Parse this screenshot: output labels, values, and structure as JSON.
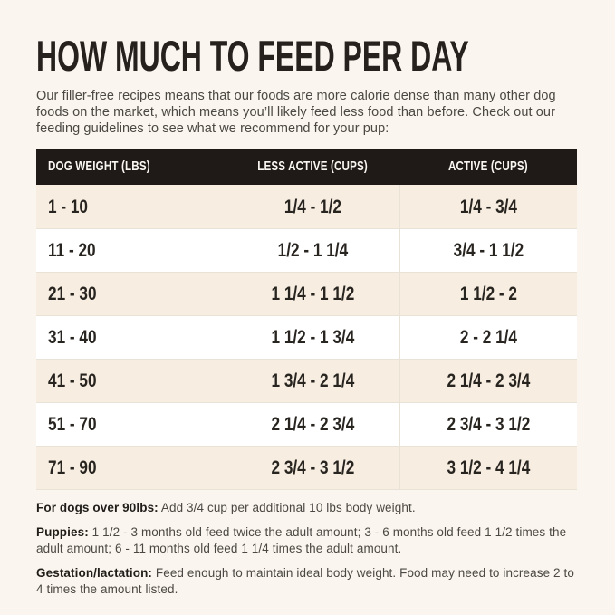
{
  "page": {
    "title": "HOW MUCH TO FEED PER DAY",
    "intro": "Our filler-free recipes means that our foods are more calorie dense than many other dog foods on the market, which means you’ll likely feed less food than before. Check out our feeding guidelines to see what we recommend for your pup:"
  },
  "table": {
    "columns": [
      "DOG WEIGHT (LBS)",
      "LESS ACTIVE (CUPS)",
      "ACTIVE (CUPS)"
    ],
    "rows": [
      {
        "weight": "1 - 10",
        "less_active": "1/4 - 1/2",
        "active": "1/4 - 3/4"
      },
      {
        "weight": "11 - 20",
        "less_active": "1/2 - 1 1/4",
        "active": "3/4 - 1 1/2"
      },
      {
        "weight": "21 - 30",
        "less_active": "1 1/4 - 1 1/2",
        "active": "1 1/2 - 2"
      },
      {
        "weight": "31 - 40",
        "less_active": "1 1/2 - 1 3/4",
        "active": "2 - 2 1/4"
      },
      {
        "weight": "41 - 50",
        "less_active": "1 3/4 - 2 1/4",
        "active": "2 1/4 - 2 3/4"
      },
      {
        "weight": "51 - 70",
        "less_active": "2 1/4 - 2 3/4",
        "active": "2 3/4 - 3 1/2"
      },
      {
        "weight": "71 - 90",
        "less_active": "2 3/4 - 3 1/2",
        "active": "3 1/2 - 4 1/4"
      }
    ]
  },
  "notes": [
    {
      "label": "For dogs over 90lbs:",
      "text": "Add 3/4 cup per additional 10 lbs body weight."
    },
    {
      "label": "Puppies:",
      "text": "1 1/2 - 3 months old feed twice the adult amount; 3 - 6 months old feed 1 1/2 times the adult amount; 6 - 11 months old feed 1 1/4 times the adult amount."
    },
    {
      "label": "Gestation/lactation:",
      "text": "Feed enough to maintain ideal body weight. Food may need to increase 2 to 4 times the amount listed."
    }
  ],
  "colors": {
    "page_bg": "#faf6ef",
    "header_bg": "#1f1a17",
    "header_text": "#faf7f2",
    "row_beige": "#f7eee1",
    "row_white": "#ffffff",
    "text_dark": "#26211d",
    "text_body": "#4b4742",
    "divider": "#e9e3d7"
  }
}
